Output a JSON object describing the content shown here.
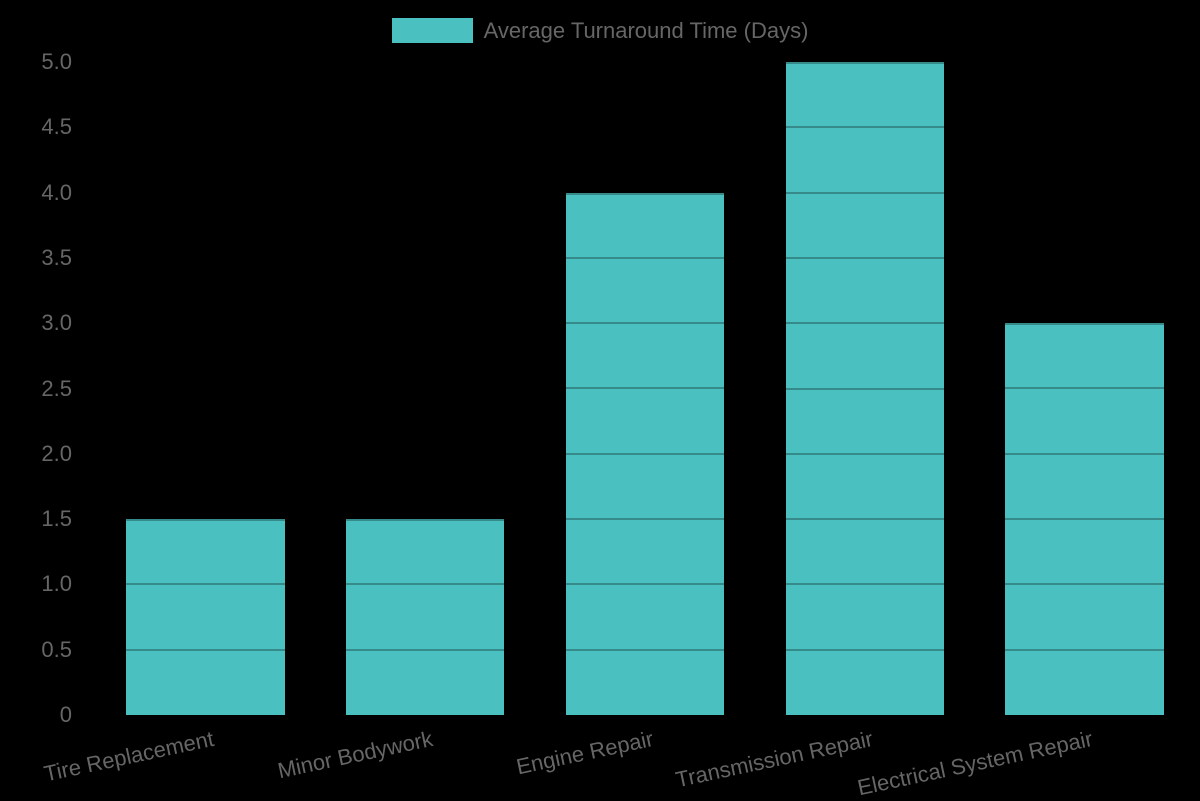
{
  "chart_data": {
    "type": "bar",
    "title": "",
    "legend": {
      "label": "Average Turnaround Time (Days)",
      "position": "top-center"
    },
    "categories": [
      "Tire Replacement",
      "Minor Bodywork",
      "Engine Repair",
      "Transmission Repair",
      "Electrical System Repair"
    ],
    "values": [
      1.5,
      1.5,
      4.0,
      5.0,
      3.0
    ],
    "xlabel": "",
    "ylabel": "",
    "ylim": [
      0,
      5
    ],
    "y_tick_step": 0.5,
    "y_tick_labels": [
      "0",
      "0.5",
      "1.0",
      "1.5",
      "2.0",
      "2.5",
      "3.0",
      "3.5",
      "4.0",
      "4.5",
      "5.0"
    ],
    "grid": "horizontal lines at each 0.5 step, visible only where they cross the bars",
    "x_label_rotation_deg": -12,
    "colors": {
      "bar": "#4bc0c0",
      "text": "#666666",
      "background": "#000000",
      "gridline_over_bar": "rgba(0,0,0,0.28)"
    }
  }
}
